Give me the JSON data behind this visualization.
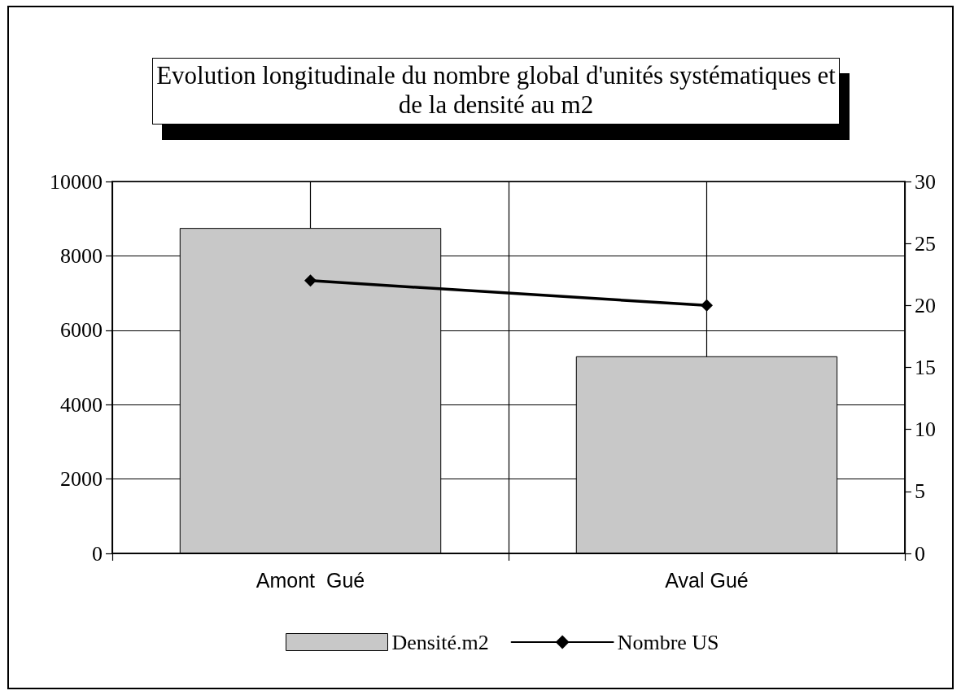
{
  "chart_data": {
    "type": "bar",
    "title": "Evolution longitudinale du nombre global d'unités systématiques et de la densité au m2",
    "categories": [
      "Amont  Gué",
      "Aval Gué"
    ],
    "series": [
      {
        "name": "Densité.m2",
        "color": "#c8c8c8",
        "values": [
          8750,
          5300
        ]
      },
      {
        "name": "Nombre US",
        "type": "line",
        "axis": "y2",
        "color": "#000000",
        "values": [
          22,
          20
        ]
      }
    ],
    "ylim": [
      0,
      10000
    ],
    "yticks": [
      0,
      2000,
      4000,
      6000,
      8000,
      10000
    ],
    "y2lim": [
      0,
      30
    ],
    "y2ticks": [
      0,
      5,
      10,
      15,
      20,
      25,
      30
    ],
    "grid": true,
    "legend": "bottom",
    "marker": "diamond"
  }
}
